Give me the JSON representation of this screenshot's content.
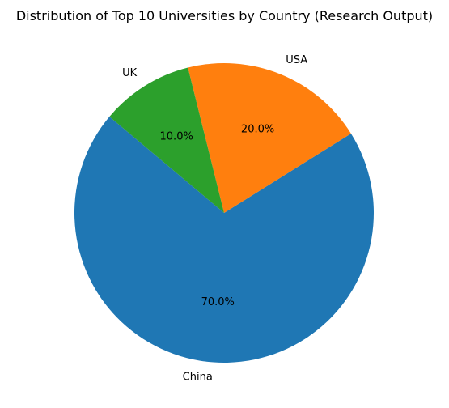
{
  "chart_data": {
    "type": "pie",
    "title": "Distribution of Top 10 Universities by Country (Research Output)",
    "categories": [
      "China",
      "USA",
      "UK"
    ],
    "values": [
      70.0,
      20.0,
      10.0
    ],
    "percent_labels": [
      "70.0%",
      "20.0%",
      "10.0%"
    ],
    "colors": [
      "#1f77b4",
      "#ff7f0e",
      "#2ca02c"
    ],
    "start_angle_deg": 140,
    "direction": "counterclockwise",
    "legend": "none"
  }
}
